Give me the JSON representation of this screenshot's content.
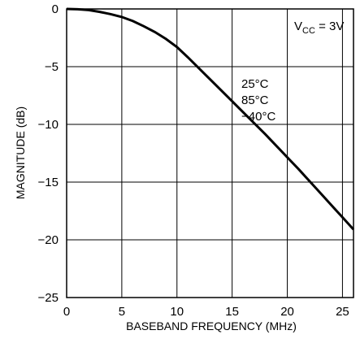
{
  "chart_data": {
    "type": "line",
    "title": "",
    "xlabel": "BASEBAND FREQUENCY (MHz)",
    "ylabel": "MAGNITUDE (dB)",
    "xlim": [
      0,
      26
    ],
    "ylim": [
      -25,
      0
    ],
    "x_ticks": [
      "0",
      "5",
      "10",
      "15",
      "20",
      "25"
    ],
    "x_tick_values": [
      0,
      5,
      10,
      15,
      20,
      25
    ],
    "y_ticks": [
      "0",
      "−5",
      "−10",
      "−15",
      "−20",
      "−25"
    ],
    "y_tick_values": [
      0,
      -5,
      -10,
      -15,
      -20,
      -25
    ],
    "grid": true,
    "annotations": {
      "supply_prefix": "V",
      "supply_sub": "CC",
      "supply_suffix": " = 3V",
      "temps": [
        "25°C",
        "85°C",
        "−40°C"
      ]
    },
    "series": [
      {
        "x": [
          0,
          1,
          2,
          3,
          4,
          5,
          6,
          7,
          8,
          9,
          10,
          11,
          12,
          13,
          14,
          15,
          16,
          17,
          18,
          19,
          20,
          21,
          22,
          23,
          24,
          25,
          26
        ],
        "y": [
          0,
          -0.03,
          -0.1,
          -0.25,
          -0.45,
          -0.7,
          -1.05,
          -1.5,
          -2.0,
          -2.6,
          -3.3,
          -4.2,
          -5.15,
          -6.1,
          -7.05,
          -8.0,
          -8.95,
          -9.9,
          -10.85,
          -11.85,
          -12.85,
          -13.85,
          -14.9,
          -15.95,
          -17.0,
          -18.05,
          -19.1
        ]
      }
    ]
  }
}
